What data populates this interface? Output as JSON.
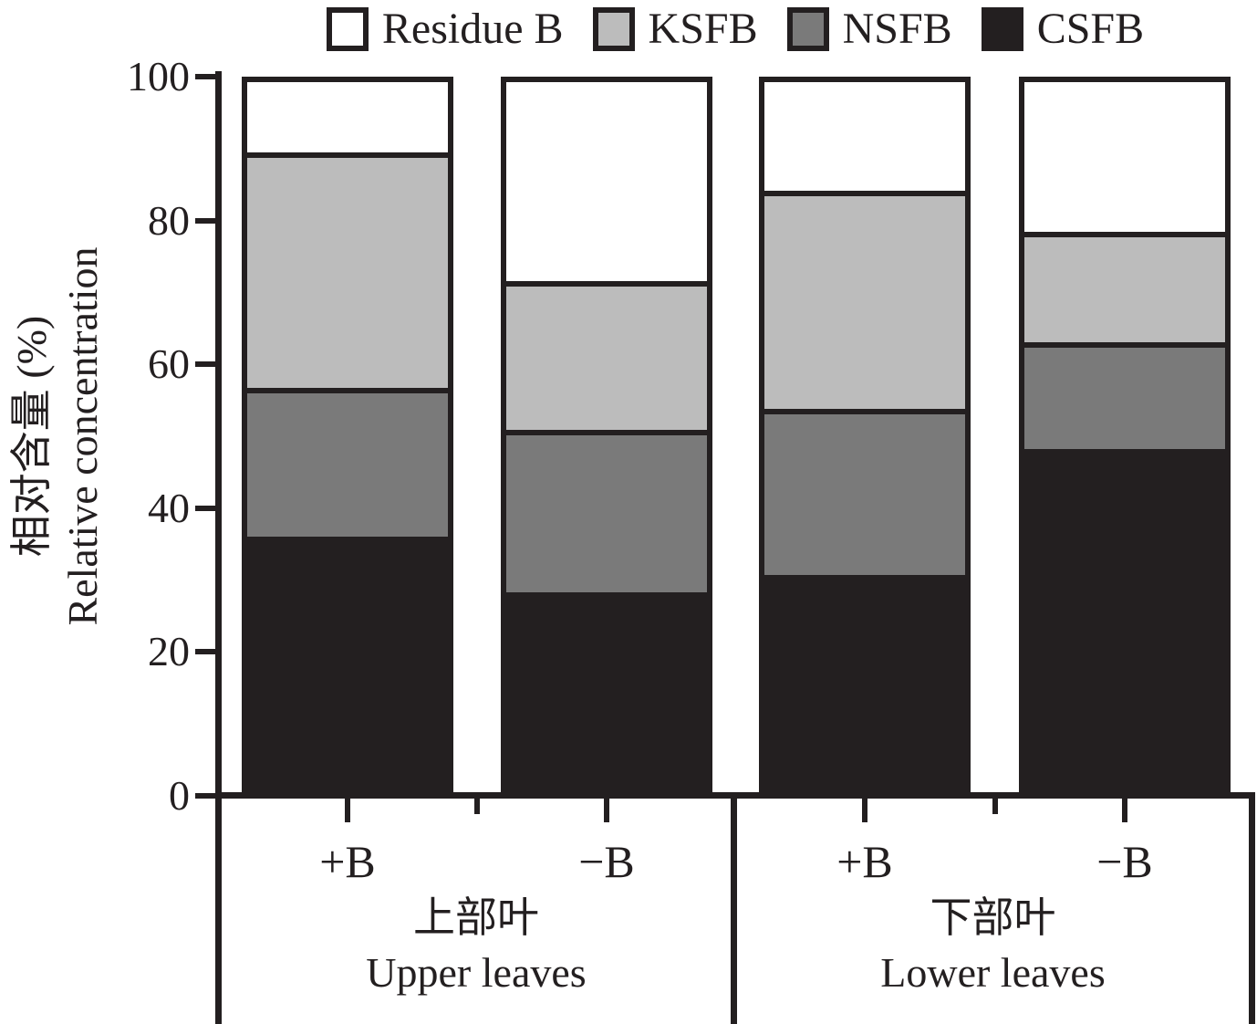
{
  "chart_data": {
    "type": "bar",
    "stacked": true,
    "orientation": "vertical",
    "title": "",
    "ylabel_zh": "相对含量 (%)",
    "ylabel_en": "Relative concentration",
    "ylim": [
      0,
      100
    ],
    "yticks": [
      0,
      20,
      40,
      60,
      80,
      100
    ],
    "grid": false,
    "legend_position": "top",
    "axis_color": "#231f20",
    "categories": [
      "+B",
      "−B",
      "+B",
      "−B"
    ],
    "groups": [
      {
        "label_zh": "上部叶",
        "label_en": "Upper leaves",
        "bar_indexes": [
          0,
          1
        ]
      },
      {
        "label_zh": "下部叶",
        "label_en": "Lower leaves",
        "bar_indexes": [
          2,
          3
        ]
      }
    ],
    "series": [
      {
        "name": "CSFB",
        "color": "#231f20",
        "values": [
          36.5,
          28.5,
          31.0,
          49.0
        ]
      },
      {
        "name": "NSFB",
        "color": "#7a7a7a",
        "values": [
          20.5,
          22.5,
          23.0,
          14.5
        ]
      },
      {
        "name": "KSFB",
        "color": "#bcbcbc",
        "values": [
          33.0,
          20.5,
          30.5,
          15.0
        ]
      },
      {
        "name": "Residue B",
        "color": "#ffffff",
        "values": [
          10.0,
          28.5,
          15.5,
          21.5
        ]
      }
    ],
    "legend": [
      {
        "label": "Residue B",
        "color": "#ffffff"
      },
      {
        "label": "KSFB",
        "color": "#bcbcbc"
      },
      {
        "label": "NSFB",
        "color": "#7a7a7a"
      },
      {
        "label": "CSFB",
        "color": "#231f20"
      }
    ]
  }
}
